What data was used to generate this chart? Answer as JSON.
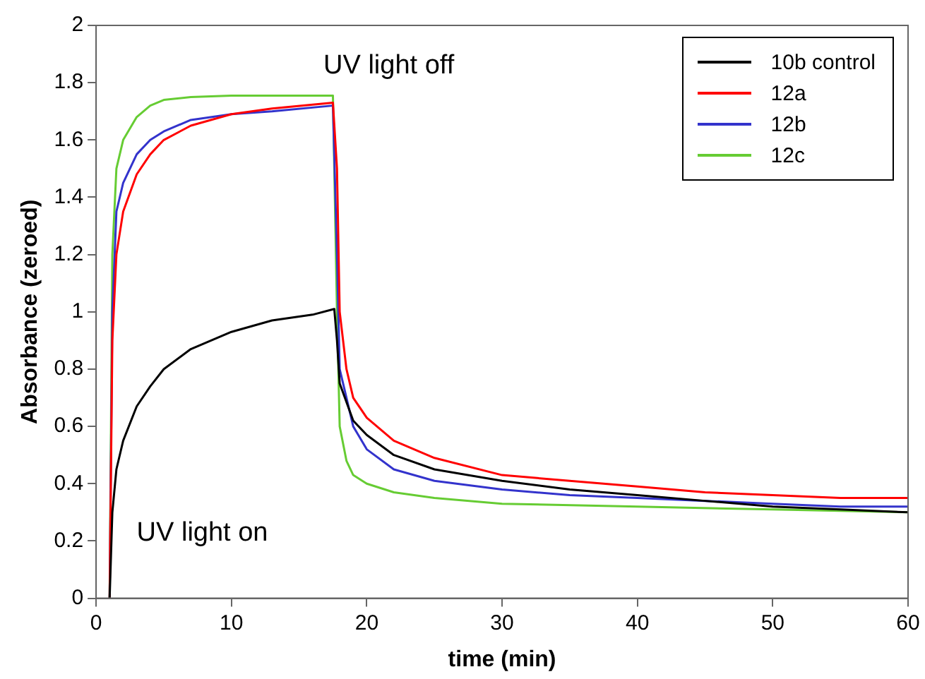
{
  "chart_data": {
    "type": "line",
    "xlabel": "time (min)",
    "ylabel": "Absorbance (zeroed)",
    "xlim": [
      0,
      60
    ],
    "xticks": [
      0,
      10,
      20,
      30,
      40,
      50,
      60
    ],
    "ylim": [
      0,
      2
    ],
    "yticks": [
      0,
      0.2,
      0.4,
      0.6,
      0.8,
      1,
      1.2,
      1.4,
      1.6,
      1.8,
      2
    ],
    "grid": false,
    "legend": "top right",
    "marker": "none",
    "line_style": "solid",
    "annotations": [
      "UV light off",
      "UV light on"
    ],
    "series": [
      {
        "name": "10b control",
        "color": "#000000",
        "x": [
          1,
          1.2,
          1.5,
          2,
          3,
          4,
          5,
          7,
          10,
          13,
          16,
          17.6,
          17.8,
          18,
          19,
          20,
          22,
          25,
          30,
          35,
          40,
          45,
          50,
          55,
          60
        ],
        "values": [
          0,
          0.3,
          0.45,
          0.55,
          0.67,
          0.74,
          0.8,
          0.87,
          0.93,
          0.97,
          0.99,
          1.01,
          0.9,
          0.75,
          0.62,
          0.57,
          0.5,
          0.45,
          0.41,
          0.38,
          0.36,
          0.34,
          0.32,
          0.31,
          0.3
        ]
      },
      {
        "name": "12a",
        "color": "#ff0000",
        "x": [
          1,
          1.2,
          1.5,
          2,
          3,
          4,
          5,
          7,
          10,
          13,
          17.5,
          17.8,
          18,
          18.5,
          19,
          20,
          22,
          25,
          30,
          35,
          40,
          45,
          50,
          55,
          60
        ],
        "values": [
          0,
          0.9,
          1.2,
          1.35,
          1.48,
          1.55,
          1.6,
          1.65,
          1.69,
          1.71,
          1.73,
          1.5,
          1,
          0.8,
          0.7,
          0.63,
          0.55,
          0.49,
          0.43,
          0.41,
          0.39,
          0.37,
          0.36,
          0.35,
          0.35
        ]
      },
      {
        "name": "12b",
        "color": "#3333cc",
        "x": [
          1,
          1.2,
          1.5,
          2,
          3,
          4,
          5,
          7,
          10,
          13,
          17.5,
          17.8,
          18,
          19,
          20,
          22,
          25,
          30,
          35,
          40,
          45,
          50,
          55,
          60
        ],
        "values": [
          0,
          1,
          1.35,
          1.45,
          1.55,
          1.6,
          1.63,
          1.67,
          1.69,
          1.7,
          1.72,
          1.2,
          0.8,
          0.6,
          0.52,
          0.45,
          0.41,
          0.38,
          0.36,
          0.35,
          0.34,
          0.33,
          0.32,
          0.32
        ]
      },
      {
        "name": "12c",
        "color": "#66cc33",
        "x": [
          1,
          1.2,
          1.5,
          2,
          3,
          4,
          5,
          7,
          10,
          17.5,
          17.8,
          18,
          18.5,
          19,
          20,
          22,
          25,
          30,
          40,
          50,
          60
        ],
        "values": [
          0,
          1.2,
          1.5,
          1.6,
          1.68,
          1.72,
          1.74,
          1.75,
          1.755,
          1.755,
          1,
          0.6,
          0.48,
          0.43,
          0.4,
          0.37,
          0.35,
          0.33,
          0.32,
          0.31,
          0.3
        ]
      }
    ]
  }
}
